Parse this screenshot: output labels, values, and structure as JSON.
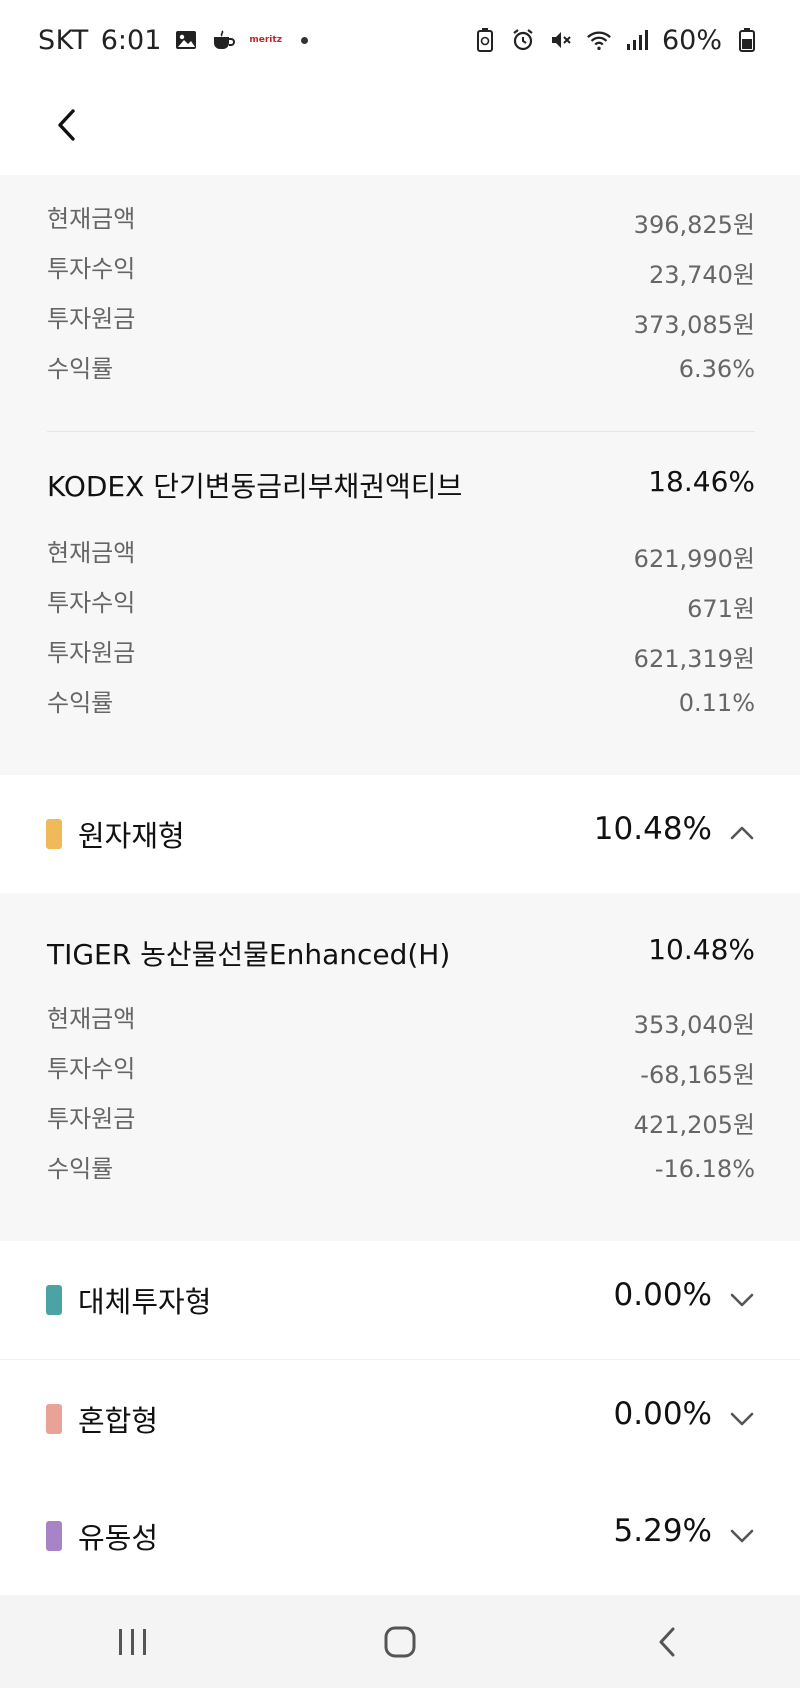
{
  "status_bar": {
    "carrier": "SKT",
    "time": "6:01",
    "battery": "60%",
    "left_icons": [
      "gallery-icon",
      "coffee-icon",
      "meritz-app-icon"
    ],
    "meritz_label": "meritz",
    "right_icons": [
      "battery-saver-icon",
      "alarm-icon",
      "mute-icon",
      "wifi-icon",
      "signal-icon",
      "battery-icon"
    ]
  },
  "labels": {
    "current_amount": "현재금액",
    "investment_return": "투자수익",
    "principal": "투자원금",
    "yield": "수익률"
  },
  "fund_top": {
    "current_amount": "396,825원",
    "investment_return": "23,740원",
    "principal": "373,085원",
    "yield": "6.36%"
  },
  "fund_kodex": {
    "name": "KODEX 단기변동금리부채권액티브",
    "pct": "18.46%",
    "current_amount": "621,990원",
    "investment_return": "671원",
    "principal": "621,319원",
    "yield": "0.11%"
  },
  "category_commodity": {
    "label": "원자재형",
    "pct": "10.48%",
    "color": "#f0b95a",
    "expanded": true
  },
  "fund_tiger": {
    "name": "TIGER 농산물선물Enhanced(H)",
    "pct": "10.48%",
    "current_amount": "353,040원",
    "investment_return": "-68,165원",
    "principal": "421,205원",
    "yield": "-16.18%"
  },
  "category_alternative": {
    "label": "대체투자형",
    "pct": "0.00%",
    "color": "#4ba3a3",
    "expanded": false
  },
  "category_mixed": {
    "label": "혼합형",
    "pct": "0.00%",
    "color": "#e8a396",
    "expanded": false
  },
  "category_liquidity": {
    "label": "유동성",
    "pct": "5.29%",
    "color": "#a784c6",
    "expanded": false
  }
}
